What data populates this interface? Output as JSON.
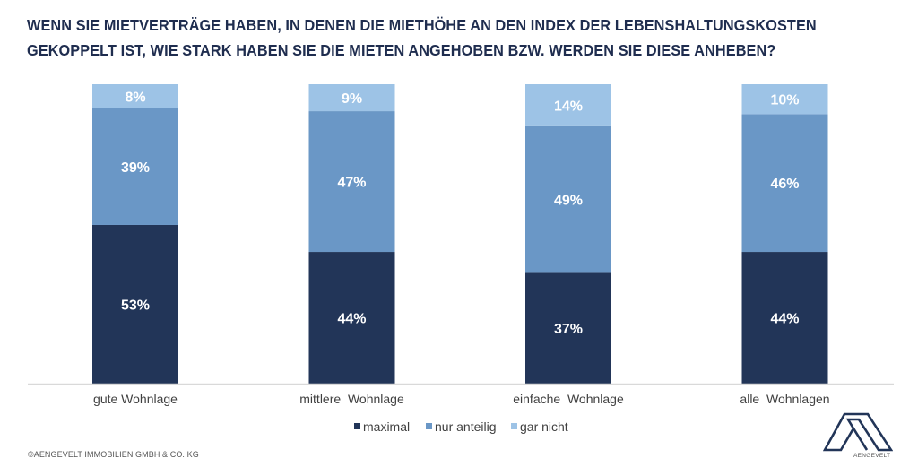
{
  "title_lines": [
    "WENN SIE MIETVERTRÄGE HABEN, IN DENEN DIE MIETHÖHE AN DEN INDEX DER LEBENSHALTUNGSKOSTEN",
    "GEKOPPELT IST, WIE STARK HABEN SIE DIE MIETEN ANGEHOBEN BZW. WERDEN SIE DIESE ANHEBEN?"
  ],
  "footer": "©AENGEVELT IMMOBILIEN GMBH & CO. KG",
  "logo": {
    "icon": "aengevelt-logo-icon",
    "text": "AENGEVELT"
  },
  "colors": {
    "maximal": "#223558",
    "nur_anteilig": "#6a97c6",
    "gar_nicht": "#9dc3e6",
    "title": "#1f2d4f"
  },
  "chart_data": {
    "type": "bar",
    "stacked": true,
    "percent_stacked": true,
    "title": "WENN SIE MIETVERTRÄGE HABEN, IN DENEN DIE MIETHÖHE AN DEN INDEX DER LEBENSHALTUNGSKOSTEN GEKOPPELT IST, WIE STARK HABEN SIE DIE MIETEN ANGEHOBEN BZW. WERDEN SIE DIESE ANHEBEN?",
    "categories": [
      "gute Wohnlage",
      "mittlere  Wohnlage",
      "einfache  Wohnlage",
      "alle  Wohnlagen"
    ],
    "series": [
      {
        "name": "maximal",
        "color": "#223558",
        "values": [
          53,
          44,
          37,
          44
        ]
      },
      {
        "name": "nur anteilig",
        "color": "#6a97c6",
        "values": [
          39,
          47,
          49,
          46
        ]
      },
      {
        "name": "gar nicht",
        "color": "#9dc3e6",
        "values": [
          8,
          9,
          14,
          10
        ]
      }
    ],
    "data_labels": true,
    "label_format": "{v}%",
    "xlabel": "",
    "ylabel": "",
    "ylim": [
      0,
      100
    ],
    "grid": false,
    "y_axis_visible": false,
    "legend": "bottom-center"
  }
}
